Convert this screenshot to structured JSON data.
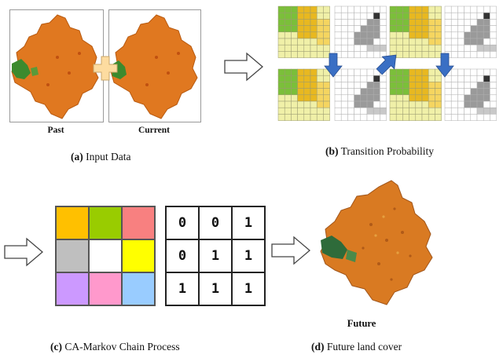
{
  "panel_a": {
    "label_letter": "(a)",
    "label_text": " Input Data",
    "map_past_label": "Past",
    "map_current_label": "Current"
  },
  "panel_b": {
    "label_letter": "(b)",
    "label_text": " Transition Probability"
  },
  "panel_c": {
    "label_letter": "(c)",
    "label_text": " CA-Markov Chain Process",
    "color_cells": [
      "#ffc000",
      "#99cc00",
      "#f88080",
      "#bfbfbf",
      "#ffffff",
      "#ffff00",
      "#cc99ff",
      "#ff99cc",
      "#99ccff"
    ],
    "binary_cells": [
      "0",
      "0",
      "1",
      "0",
      "1",
      "1",
      "1",
      "1",
      "1"
    ]
  },
  "panel_d": {
    "label_letter": "(d)",
    "label_text": " Future land cover",
    "map_label": "Future"
  },
  "colors": {
    "map_orange": "#e07820",
    "map_green": "#3c8a2e",
    "plus_fill": "#fddca0",
    "arrow_blue": "#3a6fc4",
    "grid_yellow": "#f0f0a8",
    "grid_orange": "#e8b820",
    "grid_green": "#7bbf3a"
  }
}
